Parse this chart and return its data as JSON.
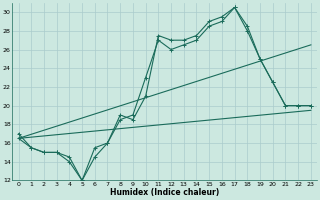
{
  "xlabel": "Humidex (Indice chaleur)",
  "bg_color": "#cce8e0",
  "grid_color": "#aacccc",
  "line_color": "#1a6b5a",
  "xlim": [
    -0.5,
    23.5
  ],
  "ylim": [
    12,
    31
  ],
  "yticks": [
    12,
    14,
    16,
    18,
    20,
    22,
    24,
    26,
    28,
    30
  ],
  "xticks": [
    0,
    1,
    2,
    3,
    4,
    5,
    6,
    7,
    8,
    9,
    10,
    11,
    12,
    13,
    14,
    15,
    16,
    17,
    18,
    19,
    20,
    21,
    22,
    23
  ],
  "line1_x": [
    0,
    1,
    2,
    3,
    4,
    5,
    6,
    7,
    8,
    9,
    10,
    11,
    12,
    13,
    14,
    15,
    16,
    17,
    18,
    19,
    20,
    21,
    22,
    23
  ],
  "line1_y": [
    17.0,
    15.5,
    15.0,
    15.0,
    14.5,
    12.0,
    14.5,
    16.0,
    18.5,
    19.0,
    23.0,
    27.0,
    26.0,
    26.5,
    27.0,
    28.5,
    29.0,
    30.5,
    28.5,
    25.0,
    22.5,
    20.0,
    20.0,
    20.0
  ],
  "line2_x": [
    0,
    1,
    2,
    3,
    4,
    5,
    6,
    7,
    8,
    9,
    10,
    11,
    12,
    13,
    14,
    15,
    16,
    17,
    18,
    19,
    20,
    21,
    22,
    23
  ],
  "line2_y": [
    16.5,
    15.5,
    15.0,
    15.0,
    14.0,
    12.0,
    15.5,
    16.0,
    19.0,
    18.5,
    21.0,
    27.5,
    27.0,
    27.0,
    27.5,
    29.0,
    29.5,
    30.5,
    28.0,
    25.0,
    22.5,
    20.0,
    20.0,
    20.0
  ],
  "line3_x": [
    0,
    23
  ],
  "line3_y": [
    16.5,
    26.5
  ],
  "line4_x": [
    0,
    23
  ],
  "line4_y": [
    16.5,
    19.5
  ]
}
